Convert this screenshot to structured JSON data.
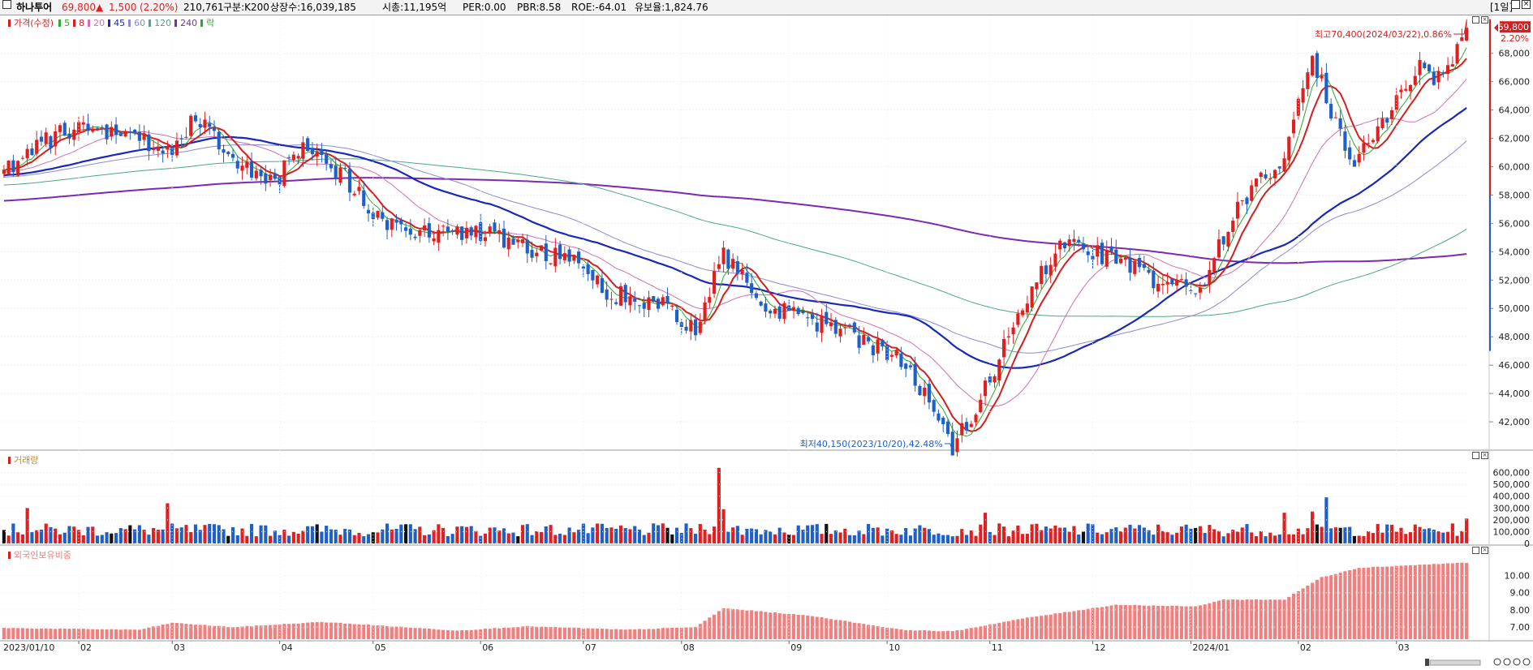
{
  "header": {
    "name": "하나투어",
    "price": "69,800",
    "arrow": "▲",
    "change": "1,500",
    "change_pct": "(2.20%)",
    "volume": "210,761",
    "group": "구분:K200",
    "listed": "상장수:16,039,185",
    "mcap": "시총:11,195억",
    "per": "PER:0.00",
    "pbr": "PBR:8.58",
    "roe": "ROE:-64.01",
    "reserve": "유보율:1,824.76",
    "period": "[1일]"
  },
  "price_panel": {
    "legend": {
      "price": "가격(수정)",
      "ma": [
        "5",
        "8",
        "20",
        "45",
        "60",
        "120",
        "240"
      ],
      "ex": "락"
    },
    "y_ticks": [
      "68,000",
      "66,000",
      "64,000",
      "62,000",
      "60,000",
      "58,000",
      "56,000",
      "54,000",
      "52,000",
      "50,000",
      "48,000",
      "46,000",
      "44,000",
      "42,000"
    ],
    "last_price": "69,800",
    "last_pct": "2.20%",
    "high_annotation": "최고70,400(2024/03/22),0.86%",
    "low_annotation": "최저40,150(2023/10/20),42.48%"
  },
  "volume_panel": {
    "legend": "거래량",
    "y_ticks": [
      "600,000",
      "500,000",
      "400,000",
      "300,000",
      "200,000",
      "100,000",
      "0"
    ]
  },
  "foreign_panel": {
    "legend": "외국인보유비중",
    "y_ticks": [
      "10.00",
      "9.00",
      "8.00",
      "7.00"
    ]
  },
  "x_axis": {
    "labels": [
      "2023/01/10",
      "02",
      "03",
      "04",
      "05",
      "06",
      "07",
      "08",
      "09",
      "10",
      "11",
      "12",
      "2024/01",
      "02",
      "03"
    ]
  },
  "colors": {
    "up": "#e02020",
    "down": "#1f5fc8",
    "ma5": "#2ea82e",
    "ma8": "#d21f1f",
    "ma20": "#d070b0",
    "ma45": "#1a28b8",
    "ma60": "#8a8ad8",
    "ma120": "#48a888",
    "ma240": "#7d2ab0",
    "foreign": "#f08080"
  },
  "chart_data": [
    {
      "type": "candlestick",
      "title": "가격(수정)",
      "x_range": [
        "2023/01/10",
        "2024/03/22"
      ],
      "ylim": [
        40000,
        70500
      ],
      "summary": {
        "last": 69800,
        "high": 70400,
        "high_date": "2024/03/22",
        "low": 40150,
        "low_date": "2023/10/20"
      },
      "anchors": [
        {
          "x": "2023/01/10",
          "close": 59800
        },
        {
          "x": "2023/01/20",
          "close": 61700
        },
        {
          "x": "2023/02/01",
          "close": 62800
        },
        {
          "x": "2023/02/15",
          "close": 62000
        },
        {
          "x": "2023/03/01",
          "close": 61000
        },
        {
          "x": "2023/03/08",
          "close": 63800
        },
        {
          "x": "2023/03/20",
          "close": 60300
        },
        {
          "x": "2023/03/31",
          "close": 59000
        },
        {
          "x": "2023/04/10",
          "close": 61400
        },
        {
          "x": "2023/04/20",
          "close": 59600
        },
        {
          "x": "2023/05/02",
          "close": 56500
        },
        {
          "x": "2023/05/15",
          "close": 55300
        },
        {
          "x": "2023/06/01",
          "close": 55300
        },
        {
          "x": "2023/06/15",
          "close": 54300
        },
        {
          "x": "2023/06/28",
          "close": 53400
        },
        {
          "x": "2023/07/10",
          "close": 51100
        },
        {
          "x": "2023/07/25",
          "close": 50500
        },
        {
          "x": "2023/08/04",
          "close": 48400
        },
        {
          "x": "2023/08/14",
          "close": 53800
        },
        {
          "x": "2023/08/24",
          "close": 50300
        },
        {
          "x": "2023/09/08",
          "close": 49200
        },
        {
          "x": "2023/09/22",
          "close": 47900
        },
        {
          "x": "2023/10/06",
          "close": 46100
        },
        {
          "x": "2023/10/20",
          "close": 40150
        },
        {
          "x": "2023/10/31",
          "close": 44300
        },
        {
          "x": "2023/11/10",
          "close": 50300
        },
        {
          "x": "2023/11/22",
          "close": 54800
        },
        {
          "x": "2023/12/06",
          "close": 53700
        },
        {
          "x": "2023/12/20",
          "close": 52000
        },
        {
          "x": "2024/01/03",
          "close": 51300
        },
        {
          "x": "2024/01/15",
          "close": 57200
        },
        {
          "x": "2024/01/29",
          "close": 60800
        },
        {
          "x": "2024/02/06",
          "close": 67600
        },
        {
          "x": "2024/02/16",
          "close": 60200
        },
        {
          "x": "2024/02/28",
          "close": 63800
        },
        {
          "x": "2024/03/08",
          "close": 67000
        },
        {
          "x": "2024/03/15",
          "close": 66000
        },
        {
          "x": "2024/03/22",
          "close": 69800
        }
      ]
    },
    {
      "type": "bar",
      "title": "거래량",
      "ylim": [
        0,
        700000
      ],
      "spikes": [
        {
          "x": "2023/01/17",
          "value": 300000
        },
        {
          "x": "2023/02/28",
          "value": 340000
        },
        {
          "x": "2023/08/11",
          "value": 640000
        },
        {
          "x": "2023/08/14",
          "value": 290000
        },
        {
          "x": "2023/10/31",
          "value": 260000
        },
        {
          "x": "2024/01/29",
          "value": 260000
        },
        {
          "x": "2024/02/06",
          "value": 270000
        },
        {
          "x": "2024/02/09",
          "value": 390000
        },
        {
          "x": "2024/03/22",
          "value": 210761
        }
      ]
    },
    {
      "type": "bar",
      "title": "외국인보유비중",
      "ylim": [
        6.3,
        11.2
      ],
      "anchors": [
        {
          "x": "2023/01/10",
          "value": 6.95
        },
        {
          "x": "2023/02/20",
          "value": 6.85
        },
        {
          "x": "2023/03/01",
          "value": 7.25
        },
        {
          "x": "2023/03/20",
          "value": 7.0
        },
        {
          "x": "2023/04/15",
          "value": 7.3
        },
        {
          "x": "2023/05/02",
          "value": 7.1
        },
        {
          "x": "2023/05/25",
          "value": 6.8
        },
        {
          "x": "2023/06/15",
          "value": 7.05
        },
        {
          "x": "2023/07/15",
          "value": 6.85
        },
        {
          "x": "2023/08/04",
          "value": 7.0
        },
        {
          "x": "2023/08/14",
          "value": 8.1
        },
        {
          "x": "2023/09/10",
          "value": 7.65
        },
        {
          "x": "2023/10/05",
          "value": 6.85
        },
        {
          "x": "2023/10/20",
          "value": 6.75
        },
        {
          "x": "2023/11/10",
          "value": 7.5
        },
        {
          "x": "2023/12/10",
          "value": 8.3
        },
        {
          "x": "2024/01/02",
          "value": 8.2
        },
        {
          "x": "2024/01/10",
          "value": 8.6
        },
        {
          "x": "2024/01/29",
          "value": 8.6
        },
        {
          "x": "2024/02/08",
          "value": 9.9
        },
        {
          "x": "2024/02/20",
          "value": 10.45
        },
        {
          "x": "2024/03/22",
          "value": 10.75
        }
      ]
    }
  ]
}
